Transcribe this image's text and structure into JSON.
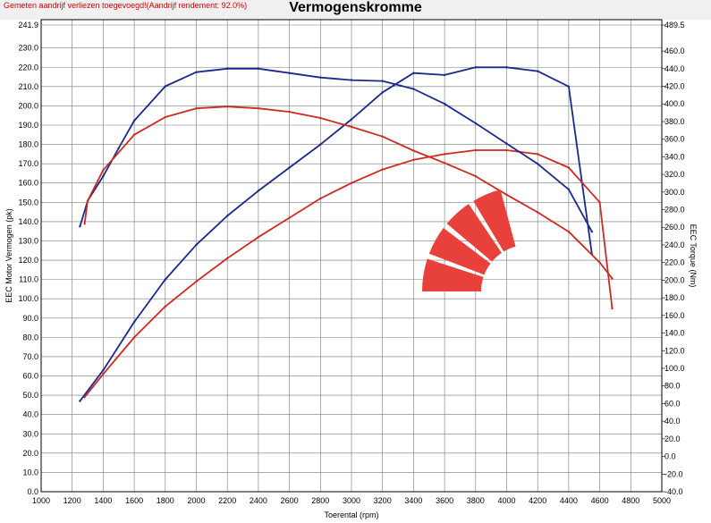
{
  "notice": "Gemeten aandrijf verliezen toegevoegd!(Aandrijf rendement: 92.0%)",
  "colors": {
    "blue": "#1a2a8c",
    "red": "#cc2a22",
    "logo": "#e8403a",
    "notice": "#d40000"
  },
  "chart_data": {
    "type": "line",
    "title": "Vermogenskromme",
    "xlabel": "Toerental (rpm)",
    "ylabel": "EEC Motor Vermogen (pk)",
    "y2label": "EEC Torque (Nm)",
    "xlim": [
      1000,
      5000
    ],
    "ylim": [
      0,
      241.9
    ],
    "y2lim": [
      -40,
      489.5
    ],
    "grid": true,
    "x_ticks": [
      "1000",
      "1200",
      "1400",
      "1600",
      "1800",
      "2000",
      "2200",
      "2400",
      "2600",
      "2800",
      "3000",
      "3200",
      "3400",
      "3600",
      "3800",
      "4000",
      "4200",
      "4400",
      "4600",
      "4800",
      "5000"
    ],
    "y_ticks": [
      "0.0",
      "10.0",
      "20.0",
      "30.0",
      "40.0",
      "50.0",
      "60.0",
      "70.0",
      "80.0",
      "90.0",
      "100.0",
      "110.0",
      "120.0",
      "130.0",
      "140.0",
      "150.0",
      "160.0",
      "170.0",
      "180.0",
      "190.0",
      "200.0",
      "210.0",
      "220.0",
      "230.0",
      "241.9"
    ],
    "y2_ticks": [
      "-40.0",
      "-20.0",
      "0.0",
      "20.0",
      "40.0",
      "60.0",
      "80.0",
      "100.0",
      "120.0",
      "140.0",
      "160.0",
      "180.0",
      "200.0",
      "220.0",
      "240.0",
      "260.0",
      "280.0",
      "300.0",
      "320.0",
      "340.0",
      "360.0",
      "380.0",
      "400.0",
      "420.0",
      "440.0",
      "460.0",
      "489.5"
    ],
    "series": [
      {
        "axis": "left",
        "color": "#1a2a8c",
        "x": [
          1250,
          1400,
          1600,
          1800,
          2000,
          2200,
          2400,
          2600,
          2800,
          3000,
          3200,
          3400,
          3600,
          3800,
          4000,
          4200,
          4400,
          4550
        ],
        "y": [
          47,
          63,
          88,
          110,
          128,
          143,
          156,
          168,
          180,
          193,
          207,
          217,
          216,
          220,
          220,
          218,
          210,
          123
        ]
      },
      {
        "axis": "left",
        "color": "#cc2a22",
        "x": [
          1280,
          1400,
          1600,
          1800,
          2000,
          2200,
          2400,
          2600,
          2800,
          3000,
          3200,
          3400,
          3600,
          3800,
          4000,
          4200,
          4400,
          4600,
          4680
        ],
        "y": [
          49,
          61,
          80,
          96,
          109,
          121,
          132,
          142,
          152,
          160,
          167,
          172,
          175,
          177,
          177,
          175,
          168,
          150,
          95
        ]
      },
      {
        "axis": "right",
        "color": "#1a2a8c",
        "x": [
          1250,
          1300,
          1400,
          1500,
          1600,
          1800,
          2000,
          2200,
          2400,
          2600,
          2800,
          3000,
          3200,
          3400,
          3600,
          3800,
          4000,
          4200,
          4400,
          4550
        ],
        "y": [
          261,
          290,
          318,
          350,
          381,
          420,
          436,
          440,
          440,
          435,
          430,
          427,
          426,
          417,
          400,
          378,
          355,
          332,
          303,
          255
        ]
      },
      {
        "axis": "right",
        "color": "#cc2a22",
        "x": [
          1280,
          1300,
          1400,
          1600,
          1800,
          2000,
          2200,
          2400,
          2600,
          2800,
          3000,
          3200,
          3400,
          3600,
          3800,
          4000,
          4200,
          4400,
          4600,
          4680
        ],
        "y": [
          264,
          290,
          325,
          365,
          385,
          395,
          397,
          395,
          391,
          384,
          374,
          363,
          347,
          333,
          318,
          297,
          277,
          255,
          220,
          202
        ]
      }
    ]
  }
}
